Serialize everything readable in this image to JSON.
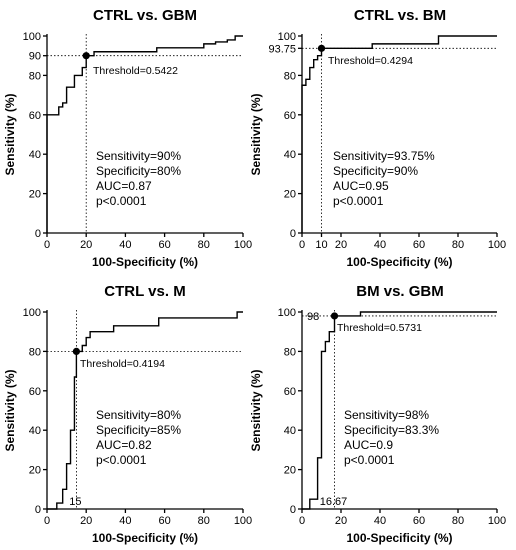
{
  "chart_data": [
    {
      "type": "line",
      "title": "CTRL vs. GBM",
      "xlabel": "100-Specificity (%)",
      "ylabel": "Sensitivity (%)",
      "xlim": [
        0,
        100
      ],
      "ylim": [
        0,
        100
      ],
      "x_ticks": [
        "0",
        "20",
        "40",
        "60",
        "80",
        "100"
      ],
      "y_ticks": [
        "0",
        "20",
        "40",
        "60",
        "80",
        "90",
        "100"
      ],
      "extra_x_labels": [],
      "extra_y_labels": [],
      "x": [
        0,
        0,
        6,
        6,
        8,
        8,
        10,
        10,
        14,
        14,
        18,
        18,
        20,
        20,
        24,
        24,
        56,
        56,
        80,
        80,
        86,
        86,
        92,
        92,
        96,
        96,
        100
      ],
      "y": [
        0,
        60,
        60,
        64,
        64,
        66,
        66,
        74,
        74,
        80,
        80,
        84,
        84,
        90,
        90,
        92,
        92,
        94,
        94,
        96,
        96,
        97,
        97,
        98,
        98,
        100,
        100
      ],
      "threshold_point": [
        20,
        90
      ],
      "threshold_label": "Threshold=0.5422",
      "stats": [
        "Sensitivity=90%",
        "Specificity=80%",
        "AUC=0.87",
        "p<0.0001"
      ]
    },
    {
      "type": "line",
      "title": "CTRL vs. BM",
      "xlabel": "100-Specificity (%)",
      "ylabel": "Sensitivity (%)",
      "xlim": [
        0,
        100
      ],
      "ylim": [
        0,
        100
      ],
      "x_ticks": [
        "0",
        "10",
        "20",
        "40",
        "60",
        "80",
        "100"
      ],
      "y_ticks": [
        "0",
        "20",
        "40",
        "60",
        "80",
        "93.75",
        "100"
      ],
      "extra_x_labels": [],
      "extra_y_labels": [],
      "x": [
        0,
        0,
        2,
        2,
        4,
        4,
        6,
        6,
        8,
        8,
        10,
        10,
        36,
        36,
        70,
        70,
        100
      ],
      "y": [
        0,
        75,
        75,
        78,
        78,
        84,
        84,
        88,
        88,
        90,
        90,
        93.75,
        93.75,
        96,
        96,
        100,
        100
      ],
      "threshold_point": [
        10,
        93.75
      ],
      "threshold_label": "Threshold=0.4294",
      "stats": [
        "Sensitivity=93.75%",
        "Specificity=90%",
        "AUC=0.95",
        "p<0.0001"
      ]
    },
    {
      "type": "line",
      "title": "CTRL vs.  M",
      "xlabel": "100-Specificity (%)",
      "ylabel": "Sensitivity (%)",
      "xlim": [
        0,
        100
      ],
      "ylim": [
        0,
        100
      ],
      "x_ticks": [
        "0",
        "20",
        "40",
        "60",
        "80",
        "100"
      ],
      "y_ticks": [
        "0",
        "20",
        "40",
        "60",
        "80",
        "100"
      ],
      "extra_x_labels": [
        "15"
      ],
      "extra_y_labels": [],
      "x": [
        0,
        5,
        5,
        8,
        8,
        10,
        10,
        12,
        12,
        14,
        14,
        15,
        15,
        18,
        18,
        20,
        20,
        22,
        22,
        34,
        34,
        57,
        57,
        97,
        97,
        100
      ],
      "y": [
        0,
        0,
        3,
        3,
        10,
        10,
        23,
        23,
        40,
        40,
        67,
        67,
        80,
        80,
        83,
        83,
        87,
        87,
        90,
        90,
        93,
        93,
        97,
        97,
        100,
        100
      ],
      "threshold_point": [
        15,
        80
      ],
      "threshold_label": "Threshold=0.4194",
      "stats": [
        "Sensitivity=80%",
        "Specificity=85%",
        "AUC=0.82",
        "p<0.0001"
      ]
    },
    {
      "type": "line",
      "title": "BM vs. GBM",
      "xlabel": "100-Specificity (%)",
      "ylabel": "Sensitivity (%)",
      "xlim": [
        0,
        100
      ],
      "ylim": [
        0,
        100
      ],
      "x_ticks": [
        "0",
        "20",
        "40",
        "60",
        "80",
        "100"
      ],
      "y_ticks": [
        "0",
        "20",
        "40",
        "60",
        "80",
        "100"
      ],
      "extra_x_labels": [
        "16.67"
      ],
      "extra_y_labels": [
        "98"
      ],
      "x": [
        0,
        4,
        4,
        8,
        8,
        10,
        10,
        12,
        12,
        14,
        14,
        16.67,
        16.67,
        30,
        30,
        100
      ],
      "y": [
        0,
        0,
        5,
        5,
        26,
        26,
        80,
        80,
        85,
        85,
        90,
        90,
        98,
        98,
        100,
        100
      ],
      "threshold_point": [
        16.67,
        98
      ],
      "threshold_label": "Threshold=0.5731",
      "stats": [
        "Sensitivity=98%",
        "Specificity=83.3%",
        "AUC=0.9",
        "p<0.0001"
      ]
    }
  ]
}
